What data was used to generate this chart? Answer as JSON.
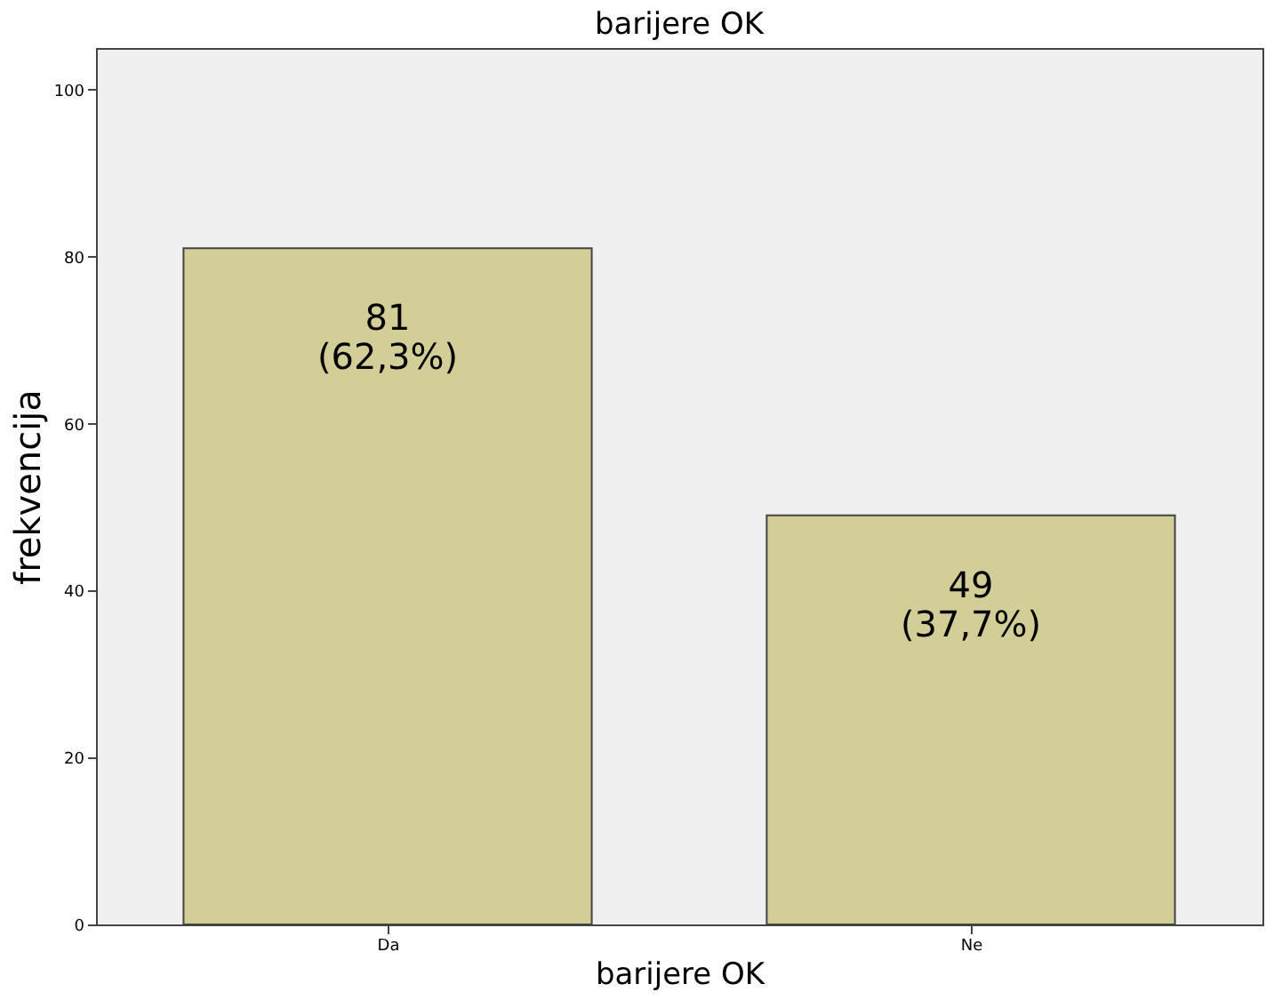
{
  "chart_data": {
    "type": "bar",
    "title": "barijere OK",
    "xlabel": "barijere OK",
    "ylabel": "frekvencija",
    "categories": [
      "Da",
      "Ne"
    ],
    "values": [
      81,
      49
    ],
    "color": "#d3ce98",
    "value_labels": [
      "81\n(62,3%)",
      "49\n(37,7%)"
    ],
    "ylim": [
      0,
      105
    ],
    "yticks": [
      0,
      20,
      40,
      60,
      80,
      100
    ],
    "grid": false
  }
}
